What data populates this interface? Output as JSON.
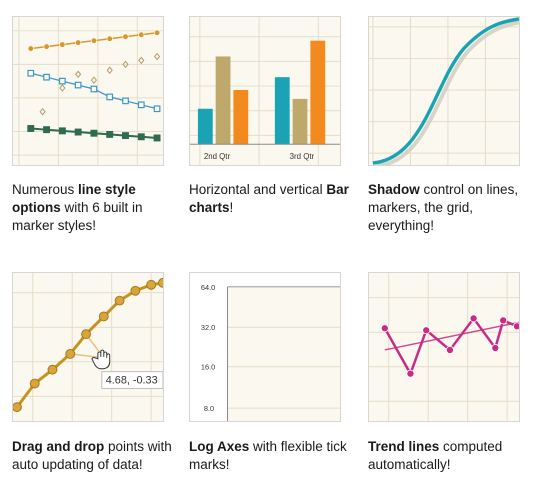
{
  "colors": {
    "thumb_bg": "#fbf8ef",
    "grid": "#e3ddc9",
    "orange": "#d9962b",
    "blue": "#3c96c6",
    "green": "#2f6b4f",
    "teal": "#1aa3b5",
    "tan": "#bfa86b",
    "bar_orange": "#f28a1e",
    "gold": "#c8921d",
    "magenta": "#c92a86"
  },
  "cards": [
    {
      "caption_parts": [
        {
          "text": "Numerous ",
          "bold": false
        },
        {
          "text": "line style options",
          "bold": true
        },
        {
          "text": " with 6 built in marker styles!",
          "bold": false
        }
      ],
      "icon": "line-styles-chart"
    },
    {
      "caption_parts": [
        {
          "text": "Horizontal and vertical ",
          "bold": false
        },
        {
          "text": "Bar charts",
          "bold": true
        },
        {
          "text": "!",
          "bold": false
        }
      ],
      "icon": "bar-chart",
      "chart_labels": [
        "2nd Qtr",
        "3rd Qtr"
      ]
    },
    {
      "caption_parts": [
        {
          "text": "Shadow",
          "bold": true
        },
        {
          "text": " control on lines, markers, the grid, everything!",
          "bold": false
        }
      ],
      "icon": "shadow-curve-chart"
    },
    {
      "caption_parts": [
        {
          "text": "Drag and drop",
          "bold": true
        },
        {
          "text": " points with auto updating of data!",
          "bold": false
        }
      ],
      "icon": "drag-drop-chart",
      "tooltip": "4.68, -0.33"
    },
    {
      "caption_parts": [
        {
          "text": "Log Axes",
          "bold": true
        },
        {
          "text": " with flexible tick marks!",
          "bold": false
        }
      ],
      "icon": "log-axis-chart",
      "tick_labels": [
        "64.0",
        "32.0",
        "16.0",
        "8.0"
      ]
    },
    {
      "caption_parts": [
        {
          "text": "Trend lines",
          "bold": true
        },
        {
          "text": " computed automatically!",
          "bold": false
        }
      ],
      "icon": "trend-line-chart"
    }
  ]
}
